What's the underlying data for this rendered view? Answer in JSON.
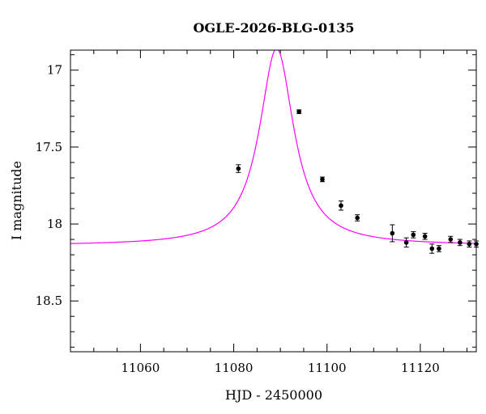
{
  "chart_data": {
    "type": "scatter",
    "title": "OGLE-2026-BLG-0135",
    "xlabel": "HJD - 2450000",
    "ylabel": "I magnitude",
    "xlim": [
      11045,
      11132
    ],
    "ylim": [
      18.83,
      16.87
    ],
    "y_inverted": true,
    "xticks": [
      11060,
      11080,
      11100,
      11120
    ],
    "yticks": [
      17,
      17.5,
      18,
      18.5
    ],
    "ytick_labels": [
      "17",
      "17.5",
      "18",
      "18.5"
    ],
    "model": {
      "name": "",
      "color": "#ff00ff",
      "t0": 11089.2,
      "peak_mag": 16.86,
      "baseline_mag": 18.14,
      "tau": 4.5
    },
    "series": [
      {
        "name": "",
        "x": [
          11081,
          11094,
          11099,
          11103,
          11106.5,
          11114,
          11117,
          11118.5,
          11121,
          11122.5,
          11124,
          11126.5,
          11128.5,
          11130.5,
          11132
        ],
        "y": [
          17.64,
          17.27,
          17.71,
          17.88,
          17.96,
          18.06,
          18.12,
          18.07,
          18.08,
          18.16,
          18.16,
          18.1,
          18.12,
          18.13,
          18.13
        ],
        "err": [
          0.025,
          0.012,
          0.015,
          0.03,
          0.02,
          0.055,
          0.03,
          0.02,
          0.02,
          0.03,
          0.02,
          0.02,
          0.02,
          0.02,
          0.02
        ]
      }
    ]
  }
}
